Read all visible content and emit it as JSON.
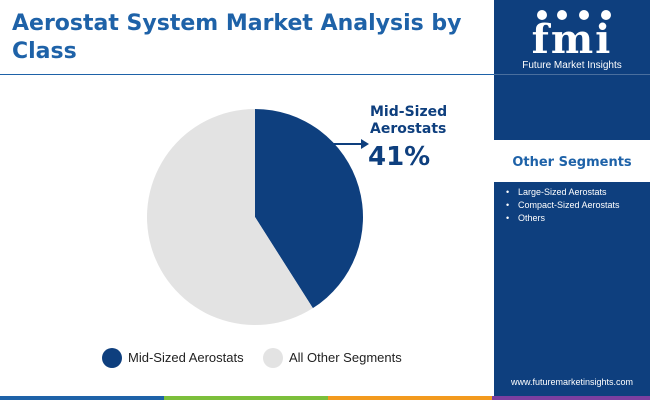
{
  "header": {
    "title": "Aerostat System Market Analysis by Class"
  },
  "brand": {
    "logo_letters": "fmi",
    "logo_text": "Future Market Insights",
    "website": "www.futuremarketinsights.com"
  },
  "other_segments": {
    "title": "Other Segments",
    "items": [
      "Large-Sized Aerostats",
      "Compact-Sized Aerostats",
      "Others"
    ]
  },
  "callout": {
    "label": "Mid-Sized Aerostats",
    "value": "41%"
  },
  "chart_data": {
    "type": "pie",
    "title": "Aerostat System Market Analysis by Class",
    "slices": [
      {
        "label": "Mid-Sized Aerostats",
        "value": 41,
        "color": "#0e3f7e"
      },
      {
        "label": "All Other Segments",
        "value": 59,
        "color": "#e3e3e3"
      }
    ],
    "start_angle_deg": 0,
    "direction": "clockwise",
    "legend": [
      "Mid-Sized Aerostats",
      "All Other Segments"
    ],
    "legend_position": "bottom"
  },
  "colors": {
    "primary": "#0e3f7e",
    "title_blue": "#1e62a8",
    "light_gray": "#e3e3e3",
    "bar_blue": "#1e62a8",
    "bar_green": "#7cbf3b",
    "bar_orange": "#f39a1e",
    "bar_purple": "#7b3fa0"
  }
}
